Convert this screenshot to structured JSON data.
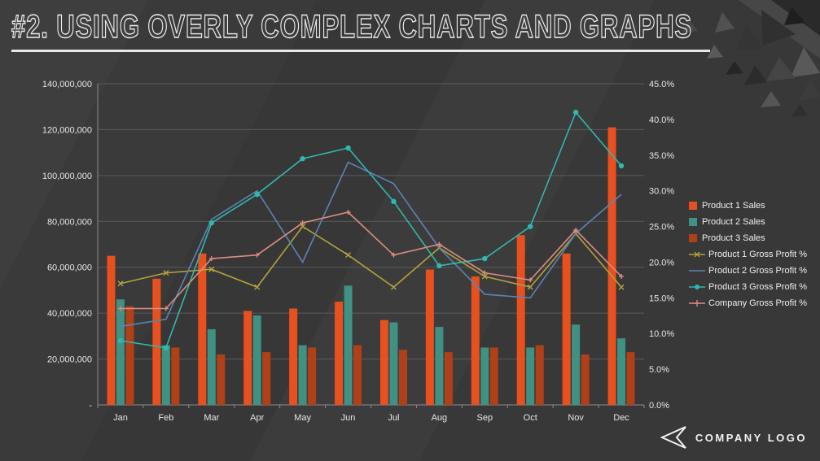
{
  "slide": {
    "title": "#2. USING OVERLY COMPLEX CHARTS AND GRAPHS",
    "footer": {
      "logo_text": "COMPANY LOGO"
    }
  },
  "chart_data": {
    "type": "combo-bar-line",
    "title": "",
    "categories": [
      "Jan",
      "Feb",
      "Mar",
      "Apr",
      "May",
      "Jun",
      "Jul",
      "Aug",
      "Sep",
      "Oct",
      "Nov",
      "Dec"
    ],
    "bar_series": [
      {
        "name": "Product 1 Sales",
        "color": "#e8501f",
        "values": [
          65000000,
          55000000,
          66000000,
          41000000,
          42000000,
          45000000,
          37000000,
          59000000,
          56000000,
          74000000,
          66000000,
          121000000
        ]
      },
      {
        "name": "Product 2 Sales",
        "color": "#3f9183",
        "values": [
          46000000,
          26000000,
          33000000,
          39000000,
          26000000,
          52000000,
          36000000,
          34000000,
          25000000,
          25000000,
          35000000,
          29000000
        ]
      },
      {
        "name": "Product 3 Sales",
        "color": "#b04018",
        "values": [
          43000000,
          25000000,
          22000000,
          23000000,
          25000000,
          26000000,
          24000000,
          23000000,
          25000000,
          26000000,
          22000000,
          23000000
        ]
      }
    ],
    "line_series": [
      {
        "name": "Product 1 Gross Profit %",
        "color": "#b3a23c",
        "marker": "x",
        "values": [
          17,
          18.5,
          19,
          16.5,
          25,
          21,
          16.5,
          22,
          18,
          16.5,
          24,
          16.5
        ]
      },
      {
        "name": "Product 2 Gross Profit %",
        "color": "#5c83b5",
        "marker": "none",
        "values": [
          11,
          12,
          26,
          30,
          20,
          34,
          31,
          22,
          15.5,
          15,
          24,
          29.5
        ]
      },
      {
        "name": "Product 3 Gross Profit %",
        "color": "#2fb8ad",
        "marker": "circle",
        "values": [
          9,
          8,
          25.5,
          29.5,
          34.5,
          36,
          28.5,
          19.5,
          20.5,
          25,
          41,
          33.5
        ]
      },
      {
        "name": "Company Gross Profit %",
        "color": "#dc8d80",
        "marker": "plus",
        "values": [
          13.5,
          13.5,
          20.5,
          21,
          25.5,
          27,
          21,
          22.5,
          18.5,
          17.5,
          24.5,
          18
        ]
      }
    ],
    "left_axis": {
      "min": 0,
      "max": 140000000,
      "step": 20000000,
      "tick_labels": [
        "-",
        "20,000,000",
        "40,000,000",
        "60,000,000",
        "80,000,000",
        "100,000,000",
        "120,000,000",
        "140,000,000"
      ]
    },
    "right_axis": {
      "min": 0,
      "max": 45,
      "step": 5,
      "tick_labels": [
        "0.0%",
        "5.0%",
        "10.0%",
        "15.0%",
        "20.0%",
        "25.0%",
        "30.0%",
        "35.0%",
        "40.0%",
        "45.0%"
      ]
    },
    "legend_position": "right",
    "grid": "horizontal"
  }
}
